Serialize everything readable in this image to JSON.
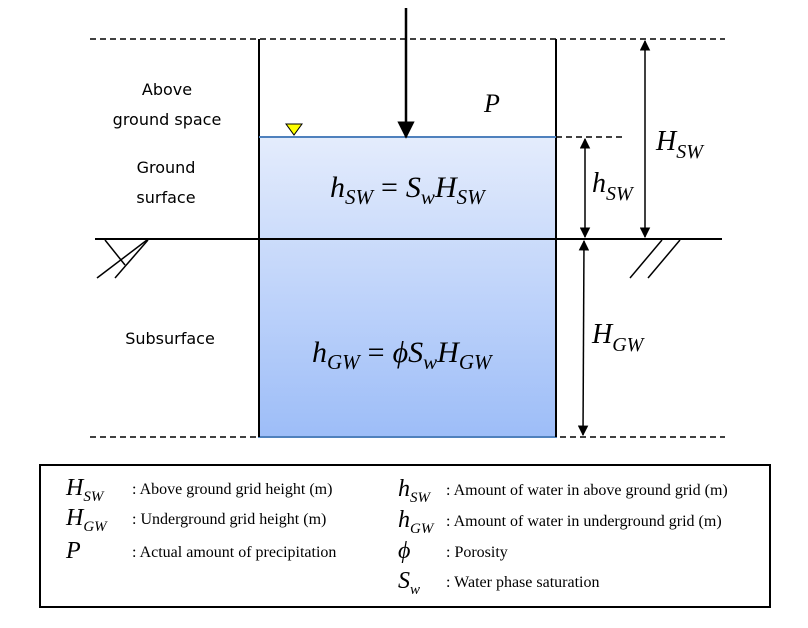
{
  "labels": {
    "above_ground": [
      "Above",
      "ground space"
    ],
    "ground_surface": [
      "Ground",
      "surface"
    ],
    "subsurface": "Subsurface"
  },
  "symbols": {
    "P": "P",
    "H": "H",
    "h": "h",
    "S": "S",
    "phi": "ϕ",
    "sub_sw": "SW",
    "sub_gw": "GW",
    "sub_w": "w",
    "equals": "="
  },
  "legend": {
    "left": [
      {
        "symbol": "H",
        "sub": "SW",
        "text": ": Above ground grid height (m)"
      },
      {
        "symbol": "H",
        "sub": "GW",
        "text": ": Underground grid height (m)"
      },
      {
        "symbol": "P",
        "sub": "",
        "text": ": Actual amount of precipitation"
      }
    ],
    "right": [
      {
        "symbol": "h",
        "sub": "SW",
        "text": ": Amount of water in above ground grid (m)"
      },
      {
        "symbol": "h",
        "sub": "GW",
        "text": ": Amount of water in underground grid (m)"
      },
      {
        "symbol": "ϕ",
        "sub": "",
        "text": ": Porosity"
      },
      {
        "symbol": "S",
        "sub": "w",
        "text": ": Water phase saturation"
      }
    ]
  },
  "colors": {
    "water_top": "#e4ecfc",
    "water_bottom": "#9dbdf8",
    "water_edge": "#4f81bd",
    "water_level_marker": "#ffff00"
  }
}
